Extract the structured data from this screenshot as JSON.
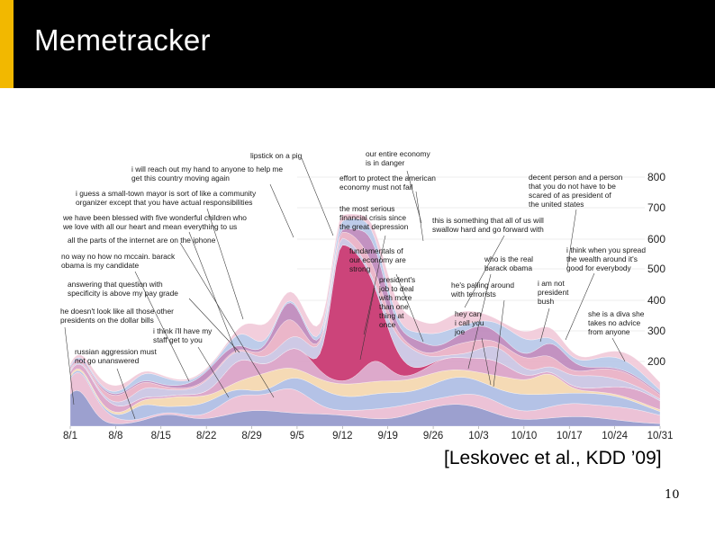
{
  "slide": {
    "title": "Memetracker",
    "citation": "[Leskovec et al., KDD ’09]",
    "slide_number": "10",
    "accent_color": "#f2b800",
    "header_color": "#000000"
  },
  "chart_data": {
    "type": "area",
    "title": "",
    "xlabel": "",
    "ylabel": "",
    "categories": [
      "8/1",
      "8/8",
      "8/15",
      "8/22",
      "8/29",
      "9/5",
      "9/12",
      "9/19",
      "9/26",
      "10/3",
      "10/10",
      "10/17",
      "10/24",
      "10/31"
    ],
    "y_ticks": [
      "200",
      "300",
      "400",
      "500",
      "600",
      "700",
      "800"
    ],
    "ylim": [
      0,
      900
    ],
    "grid": true,
    "colors": [
      "#8b8fc7",
      "#e9b7cf",
      "#a7b7e2",
      "#f3d3a8",
      "#d79ac2",
      "#c6c0e1",
      "#e7a9c0",
      "#b97fb6",
      "#b2c3e6",
      "#f0c6d6"
    ],
    "highlight_color": "#c8346f",
    "annotations": [
      "lipstick on a pig",
      "our entire economy is in danger",
      "i will reach out my hand to anyone to help me get this country moving again",
      "effort to protect the american economy must not fail",
      "decent person and a person that you do not have to be scared of as president of the united states",
      "i guess a small-town mayor is sort of like a community organizer except that you have actual responsibilities",
      "the most serious financial crisis since the great depression",
      "we have been blessed with five wonderful children who we love with all our heart and mean everything to us",
      "this is something that all of us will swallow hard and go forward with",
      "all the parts of the internet are on the iphone",
      "i think when you spread the wealth around it's good for everybody",
      "fundamentals of our economy are strong",
      "no way no how no mccain. barack obama is my candidate",
      "who is the real barack obama",
      "president's job to deal with more than one thing at once",
      "answering that question with specificity is above my pay grade",
      "i am not president bush",
      "he's palling around with terrorists",
      "he doesn't look like all those other presidents on the dollar bills",
      "hey can i call you joe",
      "she is a diva she takes no advice from anyone",
      "i think i'll have my staff get to you",
      "russian aggression must not go unanswered"
    ]
  }
}
